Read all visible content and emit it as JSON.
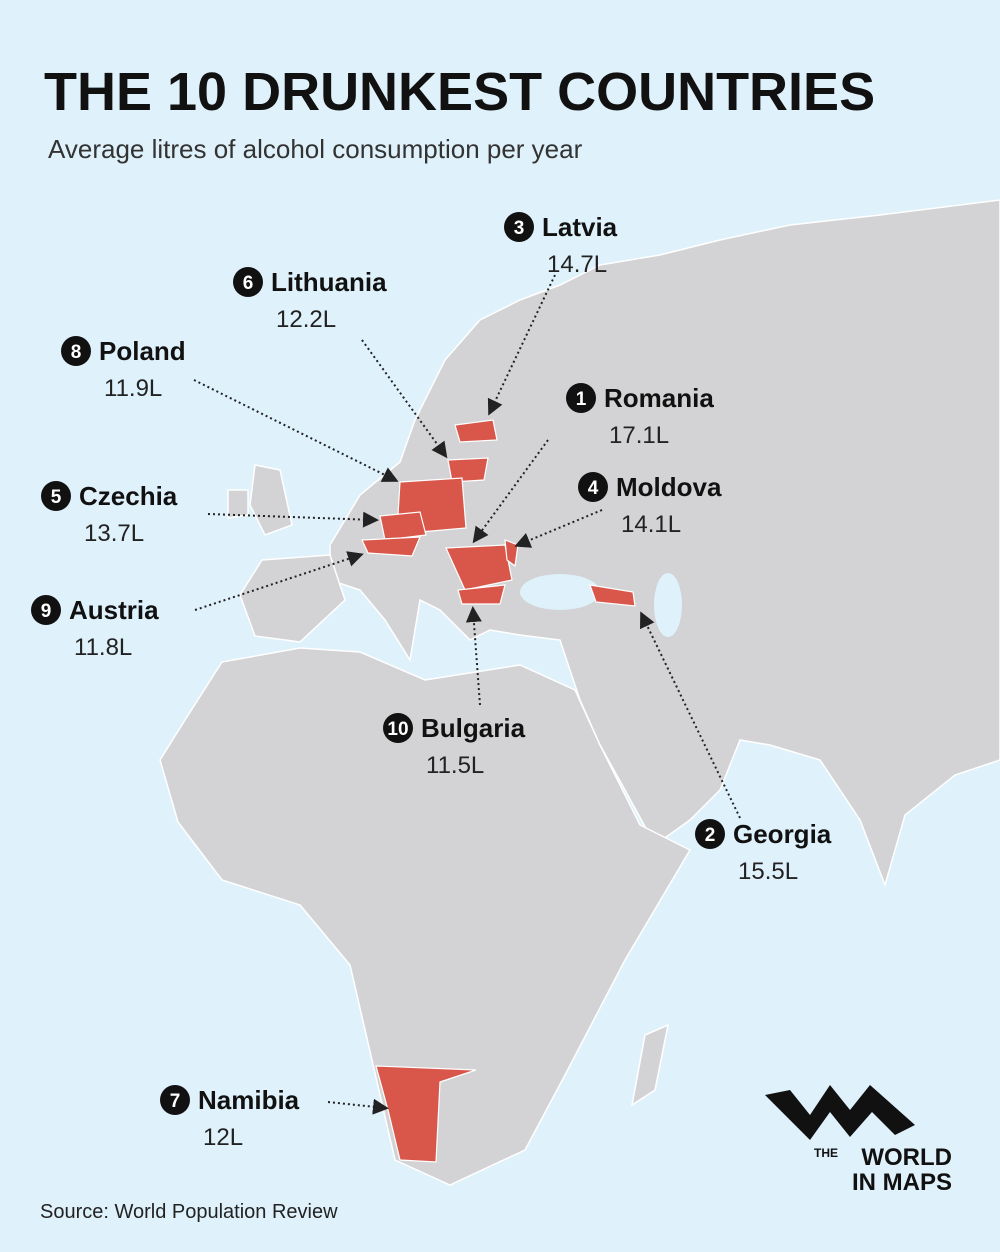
{
  "header": {
    "title": "THE 10 DRUNKEST COUNTRIES",
    "subtitle": "Average litres of alcohol consumption per year"
  },
  "countries": [
    {
      "rank": "1",
      "name": "Romania",
      "value": "17.1L"
    },
    {
      "rank": "2",
      "name": "Georgia",
      "value": "15.5L"
    },
    {
      "rank": "3",
      "name": "Latvia",
      "value": "14.7L"
    },
    {
      "rank": "4",
      "name": "Moldova",
      "value": "14.1L"
    },
    {
      "rank": "5",
      "name": "Czechia",
      "value": "13.7L"
    },
    {
      "rank": "6",
      "name": "Lithuania",
      "value": "12.2L"
    },
    {
      "rank": "7",
      "name": "Namibia",
      "value": "12L"
    },
    {
      "rank": "8",
      "name": "Poland",
      "value": "11.9L"
    },
    {
      "rank": "9",
      "name": "Austria",
      "value": "11.8L"
    },
    {
      "rank": "10",
      "name": "Bulgaria",
      "value": "11.5L"
    }
  ],
  "source": "Source: World Population Review",
  "logo": {
    "small": "THE",
    "line1": "WORLD",
    "line2": "IN MAPS"
  }
}
